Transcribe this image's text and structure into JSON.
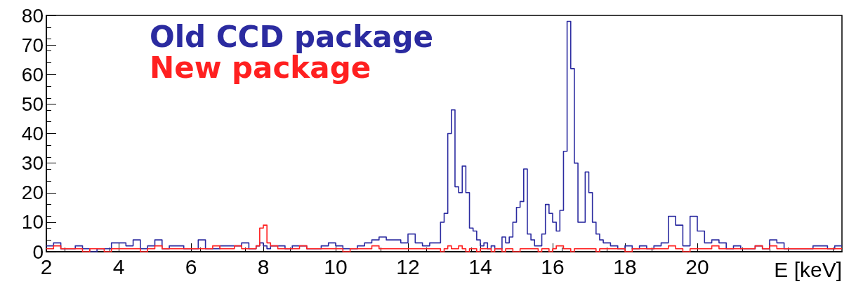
{
  "chart_data": {
    "type": "histogram",
    "xlabel": "E [keV]",
    "bins": [
      2,
      2.2,
      2.4,
      2.6,
      2.8,
      3,
      3.2,
      3.4,
      3.6,
      3.8,
      4,
      4.2,
      4.4,
      4.6,
      4.8,
      5,
      5.2,
      5.4,
      5.6,
      5.8,
      6,
      6.2,
      6.4,
      6.6,
      6.8,
      7,
      7.2,
      7.4,
      7.6,
      7.8,
      7.9,
      8,
      8.1,
      8.2,
      8.4,
      8.6,
      8.8,
      9,
      9.2,
      9.4,
      9.6,
      9.8,
      10,
      10.2,
      10.4,
      10.6,
      10.8,
      11,
      11.2,
      11.4,
      11.6,
      11.8,
      12,
      12.2,
      12.4,
      12.6,
      12.8,
      12.9,
      13,
      13.1,
      13.2,
      13.3,
      13.4,
      13.5,
      13.6,
      13.7,
      13.8,
      13.9,
      14,
      14.1,
      14.2,
      14.3,
      14.4,
      14.5,
      14.6,
      14.7,
      14.8,
      14.9,
      15,
      15.1,
      15.2,
      15.3,
      15.4,
      15.5,
      15.6,
      15.7,
      15.8,
      15.9,
      16,
      16.1,
      16.2,
      16.3,
      16.4,
      16.5,
      16.6,
      16.7,
      16.8,
      16.9,
      17,
      17.1,
      17.2,
      17.3,
      17.4,
      17.6,
      17.8,
      18,
      18.2,
      18.4,
      18.6,
      18.8,
      19,
      19.2,
      19.4,
      19.6,
      19.8,
      20,
      20.2,
      20.4,
      20.6,
      20.8,
      21,
      21.2,
      21.4,
      21.6,
      21.8,
      22,
      22.2,
      22.4,
      22.6,
      22.8,
      23,
      23.2,
      23.4,
      23.6,
      23.8,
      24
    ],
    "series": [
      {
        "name": "Old CCD package",
        "color": "#2b2ba0",
        "values": [
          2,
          3,
          1,
          1,
          2,
          1,
          0,
          1,
          1,
          3,
          3,
          2,
          4,
          1,
          2,
          4,
          1,
          2,
          2,
          1,
          1,
          4,
          1,
          1,
          2,
          2,
          2,
          3,
          1,
          2,
          3,
          2,
          1,
          2,
          2,
          1,
          2,
          2,
          1,
          1,
          2,
          3,
          2,
          1,
          1,
          2,
          3,
          4,
          5,
          4,
          4,
          3,
          6,
          3,
          2,
          3,
          3,
          10,
          13,
          40,
          48,
          22,
          20,
          29,
          20,
          8,
          7,
          4,
          2,
          3,
          1,
          2,
          1,
          1,
          5,
          3,
          5,
          10,
          15,
          17,
          28,
          6,
          4,
          2,
          2,
          6,
          16,
          13,
          10,
          7,
          14,
          34,
          78,
          62,
          30,
          10,
          10,
          27,
          20,
          10,
          6,
          4,
          3,
          2,
          1,
          2,
          1,
          2,
          1,
          2,
          3,
          12,
          9,
          2,
          12,
          7,
          3,
          4,
          3,
          1,
          2,
          1,
          1,
          2,
          1,
          4,
          3,
          1,
          1,
          1,
          1,
          2,
          2,
          1,
          2
        ]
      },
      {
        "name": "New package",
        "color": "#ff2020",
        "values": [
          1,
          2,
          1,
          1,
          1,
          0,
          1,
          1,
          0,
          1,
          1,
          1,
          1,
          0,
          1,
          2,
          1,
          1,
          1,
          1,
          1,
          1,
          1,
          2,
          1,
          1,
          2,
          1,
          1,
          2,
          8,
          9,
          3,
          2,
          1,
          1,
          1,
          2,
          1,
          1,
          1,
          1,
          1,
          0,
          1,
          1,
          1,
          2,
          1,
          1,
          1,
          1,
          1,
          1,
          1,
          1,
          1,
          0,
          1,
          2,
          1,
          1,
          2,
          1,
          0,
          1,
          1,
          0,
          1,
          1,
          1,
          0,
          1,
          1,
          0,
          1,
          1,
          0,
          0,
          1,
          1,
          1,
          1,
          1,
          0,
          1,
          1,
          0,
          1,
          2,
          2,
          1,
          1,
          0,
          1,
          1,
          1,
          1,
          1,
          1,
          0,
          1,
          1,
          1,
          1,
          0,
          1,
          1,
          1,
          1,
          1,
          2,
          1,
          0,
          1,
          1,
          1,
          2,
          1,
          1,
          1,
          1,
          1,
          2,
          1,
          2,
          1,
          1,
          1,
          1,
          1,
          1,
          1,
          1,
          1
        ]
      }
    ],
    "xlim": [
      2,
      24
    ],
    "xticks": [
      2,
      4,
      6,
      8,
      10,
      12,
      14,
      16,
      18,
      20,
      {
        "value": 22,
        "label": null
      }
    ],
    "ylim": [
      0,
      80
    ],
    "yticks": [
      0,
      10,
      20,
      30,
      40,
      50,
      60,
      70,
      80
    ],
    "grid": false,
    "legend": "top left"
  }
}
